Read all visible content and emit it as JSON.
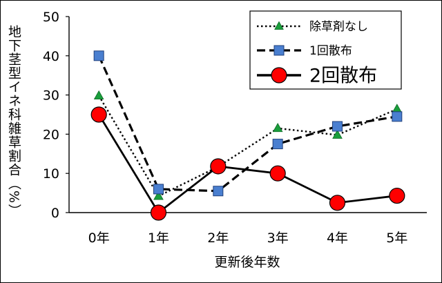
{
  "chart_data": {
    "type": "line",
    "xlabel": "更新後年数",
    "ylabel": "地下茎型イネ科雑草割合（%）",
    "categories": [
      "0年",
      "1年",
      "2年",
      "3年",
      "4年",
      "5年"
    ],
    "ylim": [
      0,
      50
    ],
    "yticks": [
      "0",
      "10",
      "20",
      "30",
      "40",
      "50"
    ],
    "grid": false,
    "legend_position": "top-right",
    "series": [
      {
        "name": "除草剤なし",
        "values": [
          29.8,
          4.2,
          11.7,
          21.5,
          19.8,
          26.4
        ],
        "color": "#000000",
        "marker_color": "#1a9e3c",
        "marker": "triangle",
        "line": "dotted"
      },
      {
        "name": "1回散布",
        "values": [
          40.0,
          6.0,
          5.5,
          17.5,
          22.0,
          24.5
        ],
        "color": "#000000",
        "marker_color": "#4a7fd0",
        "marker": "square",
        "line": "dashed"
      },
      {
        "name": "2回散布",
        "values": [
          25.0,
          0.0,
          11.8,
          10.0,
          2.5,
          4.3
        ],
        "color": "#000000",
        "marker_color": "#ff0000",
        "marker": "circle",
        "line": "solid"
      }
    ]
  }
}
